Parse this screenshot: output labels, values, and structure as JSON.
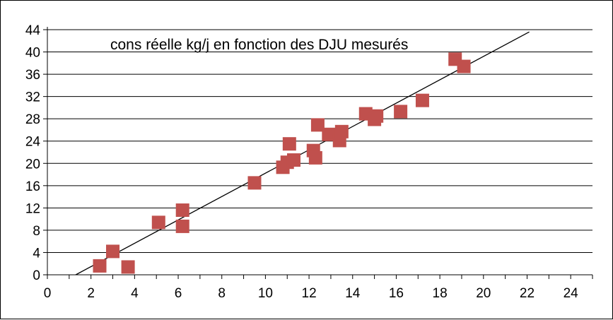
{
  "chart_data": {
    "type": "scatter",
    "title": "cons réelle kg/j en fonction des DJU mesurés",
    "xlabel": "",
    "ylabel": "",
    "xlim": [
      0,
      25
    ],
    "ylim": [
      0,
      44
    ],
    "x_ticks": [
      "0",
      "2",
      "4",
      "6",
      "8",
      "10",
      "12",
      "14",
      "16",
      "18",
      "20",
      "22",
      "24"
    ],
    "y_ticks": [
      "0",
      "4",
      "8",
      "12",
      "16",
      "20",
      "24",
      "28",
      "32",
      "36",
      "40",
      "44"
    ],
    "grid": "horizontal",
    "legend": "none",
    "colors": {
      "marker": "#c0504d",
      "trendline": "#000000",
      "grid": "#000000"
    },
    "series": [
      {
        "points": [
          [
            2.4,
            1.6
          ],
          [
            3.0,
            4.2
          ],
          [
            3.7,
            1.4
          ],
          [
            5.1,
            9.4
          ],
          [
            6.2,
            11.6
          ],
          [
            6.2,
            8.7
          ],
          [
            9.5,
            16.5
          ],
          [
            10.8,
            19.3
          ],
          [
            11.0,
            20.2
          ],
          [
            11.1,
            23.5
          ],
          [
            11.3,
            20.6
          ],
          [
            12.2,
            22.3
          ],
          [
            12.3,
            21.0
          ],
          [
            12.4,
            26.9
          ],
          [
            12.9,
            25.2
          ],
          [
            13.4,
            24.1
          ],
          [
            13.5,
            25.7
          ],
          [
            14.6,
            28.9
          ],
          [
            15.0,
            27.9
          ],
          [
            15.1,
            28.5
          ],
          [
            16.2,
            29.3
          ],
          [
            17.2,
            31.3
          ],
          [
            18.7,
            38.7
          ],
          [
            19.1,
            37.4
          ]
        ]
      }
    ],
    "trendline": {
      "x": [
        1.3,
        22.1
      ],
      "y": [
        0,
        43.6
      ]
    }
  }
}
